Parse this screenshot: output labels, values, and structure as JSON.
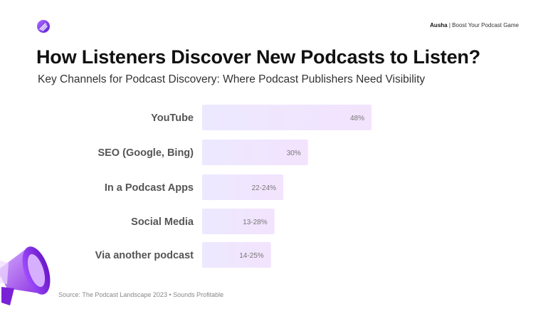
{
  "header": {
    "logo_icon": "ausha-logo-icon",
    "brand_name": "Ausha",
    "brand_separator": "|",
    "brand_tagline": "Boost Your Podcast Game"
  },
  "colors": {
    "bar_start": "#ece9ff",
    "bar_end": "#f3e3fd",
    "accent": "#8b3dff"
  },
  "chart_data": {
    "type": "bar",
    "orientation": "horizontal",
    "title": "How Listeners Discover New Podcasts to Listen?",
    "subtitle": "Key Channels for Podcast Discovery: Where Podcast Publishers Need Visibility",
    "categories": [
      "YouTube",
      "SEO (Google, Bing)",
      "In a Podcast Apps",
      "Social Media",
      "Via another podcast"
    ],
    "values": [
      48,
      30,
      23,
      20.5,
      19.5
    ],
    "value_labels": [
      "48%",
      "30%",
      "22-24%",
      "13-28%",
      "14-25%"
    ],
    "grid": false,
    "legend": "none"
  },
  "footer": {
    "source": "Source: The Podcast Landscape 2023 • Sounds Profitable"
  },
  "decoration": {
    "icon": "megaphone-icon"
  }
}
